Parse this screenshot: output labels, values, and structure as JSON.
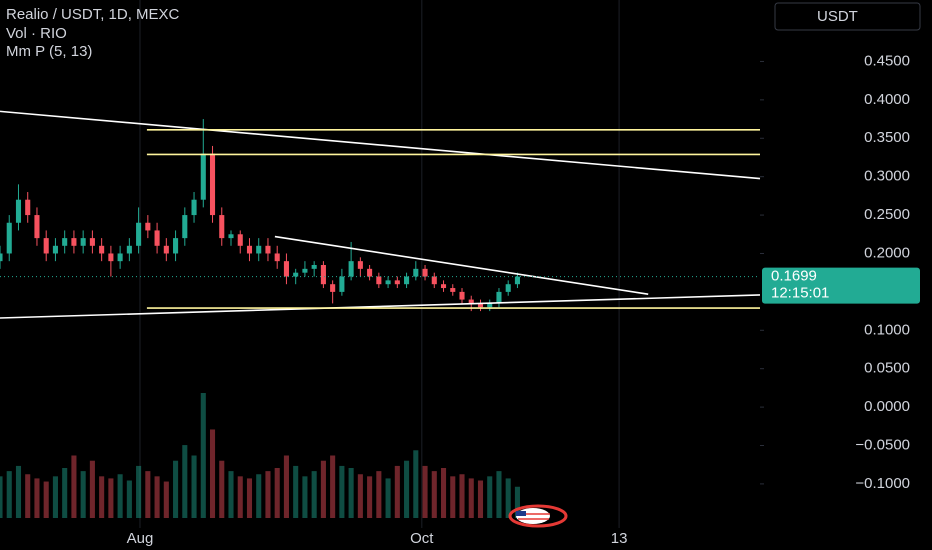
{
  "chart_data": {
    "type": "candlestick",
    "title": "Realio / USDT, 1D, MEXC",
    "indicators": [
      "Vol · RIO",
      "Mm P (5, 13)"
    ],
    "currency_button": "USDT",
    "up_color": "#22ab94",
    "down_color": "#f7525f",
    "x": [
      0,
      2,
      4,
      6,
      8,
      10,
      12,
      14,
      16,
      18,
      20,
      22,
      24,
      26,
      28,
      30,
      32,
      34,
      36,
      38,
      40,
      42,
      44,
      46,
      48,
      50,
      52,
      54,
      56,
      58,
      60,
      62,
      64,
      66,
      68,
      70,
      72,
      74,
      76,
      78,
      80,
      82,
      84,
      86,
      88,
      90,
      92,
      94,
      96,
      98,
      100,
      102,
      104,
      106,
      108,
      110,
      112
    ],
    "open": [
      0.19,
      0.2,
      0.24,
      0.27,
      0.25,
      0.22,
      0.2,
      0.21,
      0.22,
      0.21,
      0.22,
      0.21,
      0.2,
      0.19,
      0.2,
      0.21,
      0.24,
      0.23,
      0.21,
      0.2,
      0.22,
      0.25,
      0.27,
      0.33,
      0.25,
      0.22,
      0.225,
      0.21,
      0.2,
      0.21,
      0.2,
      0.19,
      0.17,
      0.175,
      0.18,
      0.185,
      0.16,
      0.15,
      0.17,
      0.19,
      0.18,
      0.17,
      0.16,
      0.165,
      0.16,
      0.17,
      0.18,
      0.17,
      0.16,
      0.155,
      0.15,
      0.14,
      0.135,
      0.13,
      0.135,
      0.15,
      0.16
    ],
    "high": [
      0.21,
      0.25,
      0.29,
      0.28,
      0.26,
      0.23,
      0.22,
      0.23,
      0.23,
      0.23,
      0.23,
      0.22,
      0.21,
      0.21,
      0.22,
      0.26,
      0.25,
      0.24,
      0.22,
      0.23,
      0.26,
      0.28,
      0.375,
      0.34,
      0.26,
      0.23,
      0.23,
      0.22,
      0.22,
      0.22,
      0.21,
      0.2,
      0.18,
      0.19,
      0.19,
      0.19,
      0.165,
      0.18,
      0.215,
      0.195,
      0.185,
      0.175,
      0.17,
      0.17,
      0.175,
      0.19,
      0.185,
      0.175,
      0.165,
      0.16,
      0.155,
      0.145,
      0.14,
      0.14,
      0.155,
      0.165,
      0.175
    ],
    "low": [
      0.18,
      0.19,
      0.23,
      0.24,
      0.21,
      0.19,
      0.19,
      0.2,
      0.2,
      0.2,
      0.2,
      0.19,
      0.17,
      0.18,
      0.19,
      0.2,
      0.22,
      0.2,
      0.19,
      0.19,
      0.21,
      0.24,
      0.26,
      0.24,
      0.21,
      0.21,
      0.2,
      0.19,
      0.19,
      0.19,
      0.18,
      0.16,
      0.16,
      0.17,
      0.17,
      0.155,
      0.135,
      0.145,
      0.165,
      0.17,
      0.165,
      0.155,
      0.155,
      0.155,
      0.155,
      0.165,
      0.165,
      0.155,
      0.15,
      0.145,
      0.135,
      0.125,
      0.125,
      0.125,
      0.13,
      0.145,
      0.155
    ],
    "close": [
      0.2,
      0.24,
      0.27,
      0.25,
      0.22,
      0.2,
      0.21,
      0.22,
      0.21,
      0.22,
      0.21,
      0.2,
      0.19,
      0.2,
      0.21,
      0.24,
      0.23,
      0.21,
      0.2,
      0.22,
      0.25,
      0.27,
      0.33,
      0.25,
      0.22,
      0.225,
      0.21,
      0.2,
      0.21,
      0.2,
      0.19,
      0.17,
      0.175,
      0.18,
      0.185,
      0.16,
      0.15,
      0.17,
      0.19,
      0.18,
      0.17,
      0.16,
      0.165,
      0.16,
      0.17,
      0.18,
      0.17,
      0.16,
      0.155,
      0.15,
      0.14,
      0.135,
      0.13,
      0.135,
      0.15,
      0.16,
      0.1699
    ],
    "volume": [
      40,
      45,
      50,
      42,
      38,
      35,
      40,
      48,
      60,
      45,
      55,
      40,
      38,
      42,
      36,
      50,
      45,
      40,
      35,
      55,
      70,
      60,
      120,
      85,
      55,
      45,
      40,
      38,
      42,
      45,
      48,
      60,
      50,
      40,
      45,
      55,
      60,
      50,
      48,
      42,
      40,
      45,
      38,
      50,
      55,
      65,
      50,
      45,
      48,
      40,
      42,
      38,
      36,
      40,
      45,
      38,
      30
    ],
    "xlim": [
      0,
      164.5
    ],
    "xticks": [
      {
        "value": 30.3,
        "label": "Aug"
      },
      {
        "value": 91.3,
        "label": "Oct"
      },
      {
        "value": 134,
        "label": "13"
      }
    ],
    "ylim": [
      -0.16,
      0.53
    ],
    "yticks": [
      {
        "value": 0.45,
        "label": "0.4500"
      },
      {
        "value": 0.4,
        "label": "0.4000"
      },
      {
        "value": 0.35,
        "label": "0.3500"
      },
      {
        "value": 0.3,
        "label": "0.3000"
      },
      {
        "value": 0.25,
        "label": "0.2500"
      },
      {
        "value": 0.2,
        "label": "0.2000"
      },
      {
        "value": 0.1,
        "label": "0.1000"
      },
      {
        "value": 0.05,
        "label": "0.0500"
      },
      {
        "value": 0,
        "label": "0.0000"
      },
      {
        "value": -0.05,
        "label": "−0.0500"
      },
      {
        "value": -0.1,
        "label": "−0.1000"
      }
    ],
    "last_label": "0.1699",
    "countdown": "12:15:01",
    "lines": [
      {
        "color": "#ffffff",
        "x": [
          0,
          164.5
        ],
        "y": [
          0.385,
          0.2975
        ]
      },
      {
        "color": "#ffffff",
        "x": [
          59.5,
          140.3
        ],
        "y": [
          0.222,
          0.147
        ]
      },
      {
        "color": "#ffffff",
        "x": [
          0,
          164.5
        ],
        "y": [
          0.116,
          0.146
        ]
      },
      {
        "color": "#fff59d",
        "x": [
          31.8,
          164.5
        ],
        "y": [
          0.361,
          0.361
        ]
      },
      {
        "color": "#fff59d",
        "x": [
          31.8,
          164.5
        ],
        "y": [
          0.329,
          0.329
        ]
      },
      {
        "color": "#fff59d",
        "x": [
          31.8,
          164.5
        ],
        "y": [
          0.129,
          0.129
        ]
      }
    ]
  }
}
